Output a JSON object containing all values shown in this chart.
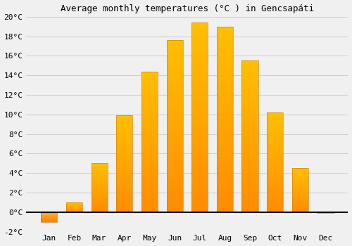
{
  "title": "Average monthly temperatures (°C ) in Gencsapáti",
  "months": [
    "Jan",
    "Feb",
    "Mar",
    "Apr",
    "May",
    "Jun",
    "Jul",
    "Aug",
    "Sep",
    "Oct",
    "Nov",
    "Dec"
  ],
  "values": [
    -1.0,
    1.0,
    5.0,
    9.9,
    14.4,
    17.6,
    19.4,
    19.0,
    15.5,
    10.2,
    4.5,
    -0.1
  ],
  "bar_color_top": "#FFB300",
  "bar_color_bottom": "#FF8C00",
  "bar_color_neg_top": "#FFA040",
  "bar_color_neg_bottom": "#FF6000",
  "ylim": [
    -2,
    20
  ],
  "yticks": [
    -2,
    0,
    2,
    4,
    6,
    8,
    10,
    12,
    14,
    16,
    18,
    20
  ],
  "background_color": "#f0f0f0",
  "grid_color": "#d0d0d0",
  "title_fontsize": 9,
  "tick_fontsize": 8,
  "font_family": "monospace",
  "bar_width": 0.65
}
